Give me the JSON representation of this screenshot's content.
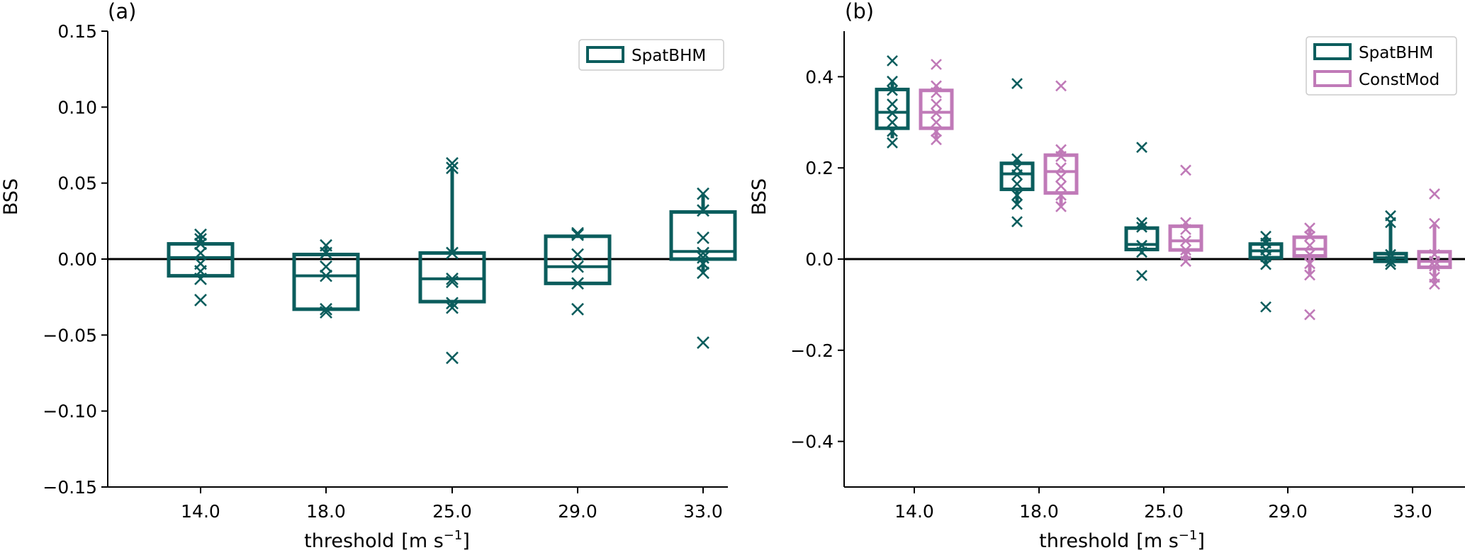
{
  "colors": {
    "spat": "#0b5d5d",
    "const": "#c07ab8",
    "axis": "#000000"
  },
  "chart_data": [
    {
      "type": "box",
      "panel_label": "(a)",
      "ylabel": "BSS",
      "xlabel": "threshold",
      "xlabel_unit": "[m s",
      "xlabel_unit_exp": "−1",
      "xlabel_unit_end": "]",
      "categories": [
        "14.0",
        "18.0",
        "25.0",
        "29.0",
        "33.0"
      ],
      "ylim": [
        -0.15,
        0.15
      ],
      "yticks": [
        -0.15,
        -0.1,
        -0.05,
        0.0,
        0.05,
        0.1,
        0.15
      ],
      "ytick_labels": [
        "−0.15",
        "−0.10",
        "−0.05",
        "0.00",
        "0.05",
        "0.10",
        "0.15"
      ],
      "legend": {
        "position": "top-right",
        "entries": [
          "SpatBHM"
        ]
      },
      "series": [
        {
          "name": "SpatBHM",
          "color_key": "spat",
          "boxes": [
            {
              "q1": -0.011,
              "median": 0.001,
              "q3": 0.01,
              "whisker_low": -0.011,
              "whisker_high": 0.015,
              "points": [
                0.016,
                0.013,
                0.01,
                0.004,
                -0.003,
                -0.008,
                -0.013,
                -0.027
              ]
            },
            {
              "q1": -0.033,
              "median": -0.011,
              "q3": 0.003,
              "whisker_low": -0.034,
              "whisker_high": 0.008,
              "points": [
                0.009,
                0.004,
                -0.005,
                -0.011,
                -0.033,
                -0.035
              ]
            },
            {
              "q1": -0.028,
              "median": -0.013,
              "q3": 0.004,
              "whisker_low": -0.031,
              "whisker_high": 0.061,
              "points": [
                0.063,
                0.06,
                0.004,
                -0.013,
                -0.015,
                -0.029,
                -0.032,
                -0.065
              ]
            },
            {
              "q1": -0.016,
              "median": -0.005,
              "q3": 0.015,
              "whisker_low": -0.016,
              "whisker_high": 0.017,
              "points": [
                0.017,
                0.016,
                0.003,
                -0.005,
                -0.016,
                -0.033
              ]
            },
            {
              "q1": 0.0,
              "median": 0.005,
              "q3": 0.031,
              "whisker_low": -0.009,
              "whisker_high": 0.043,
              "points": [
                0.043,
                0.032,
                0.014,
                0.004,
                0.001,
                -0.003,
                -0.009,
                -0.055
              ]
            }
          ]
        }
      ]
    },
    {
      "type": "box",
      "panel_label": "(b)",
      "ylabel": "BSS",
      "xlabel": "threshold",
      "xlabel_unit": "[m s",
      "xlabel_unit_exp": "−1",
      "xlabel_unit_end": "]",
      "categories": [
        "14.0",
        "18.0",
        "25.0",
        "29.0",
        "33.0"
      ],
      "ylim": [
        -0.5,
        0.5
      ],
      "yticks": [
        -0.4,
        -0.2,
        0.0,
        0.2,
        0.4
      ],
      "ytick_labels": [
        "−0.4",
        "−0.2",
        "0.0",
        "0.2",
        "0.4"
      ],
      "legend": {
        "position": "top-right",
        "entries": [
          "SpatBHM",
          "ConstMod"
        ]
      },
      "series": [
        {
          "name": "SpatBHM",
          "color_key": "spat",
          "boxes": [
            {
              "q1": 0.287,
              "median": 0.322,
              "q3": 0.372,
              "whisker_low": 0.265,
              "whisker_high": 0.39,
              "points": [
                0.435,
                0.39,
                0.37,
                0.34,
                0.32,
                0.3,
                0.28,
                0.255
              ]
            },
            {
              "q1": 0.153,
              "median": 0.187,
              "q3": 0.21,
              "whisker_low": 0.12,
              "whisker_high": 0.22,
              "points": [
                0.385,
                0.22,
                0.2,
                0.185,
                0.165,
                0.14,
                0.12,
                0.082
              ]
            },
            {
              "q1": 0.021,
              "median": 0.032,
              "q3": 0.068,
              "whisker_low": 0.01,
              "whisker_high": 0.08,
              "points": [
                0.245,
                0.08,
                0.07,
                0.03,
                0.015,
                -0.036
              ]
            },
            {
              "q1": 0.003,
              "median": 0.018,
              "q3": 0.033,
              "whisker_low": -0.012,
              "whisker_high": 0.05,
              "points": [
                0.05,
                0.035,
                0.02,
                0.005,
                -0.012,
                -0.105
              ]
            },
            {
              "q1": -0.005,
              "median": 0.003,
              "q3": 0.012,
              "whisker_low": -0.012,
              "whisker_high": 0.085,
              "points": [
                0.095,
                0.08,
                0.01,
                0.003,
                -0.005,
                -0.012
              ]
            }
          ]
        },
        {
          "name": "ConstMod",
          "color_key": "const",
          "boxes": [
            {
              "q1": 0.287,
              "median": 0.322,
              "q3": 0.37,
              "whisker_low": 0.262,
              "whisker_high": 0.38,
              "points": [
                0.427,
                0.38,
                0.365,
                0.34,
                0.32,
                0.3,
                0.28,
                0.262
              ]
            },
            {
              "q1": 0.145,
              "median": 0.192,
              "q3": 0.228,
              "whisker_low": 0.115,
              "whisker_high": 0.24,
              "points": [
                0.38,
                0.24,
                0.225,
                0.2,
                0.18,
                0.16,
                0.14,
                0.115
              ]
            },
            {
              "q1": 0.02,
              "median": 0.04,
              "q3": 0.072,
              "whisker_low": -0.005,
              "whisker_high": 0.08,
              "points": [
                0.195,
                0.08,
                0.065,
                0.04,
                0.02,
                0.01,
                -0.005
              ]
            },
            {
              "q1": 0.007,
              "median": 0.022,
              "q3": 0.048,
              "whisker_low": -0.035,
              "whisker_high": 0.068,
              "points": [
                0.068,
                0.05,
                0.03,
                0.01,
                -0.01,
                -0.035,
                -0.122
              ]
            },
            {
              "q1": -0.018,
              "median": -0.005,
              "q3": 0.016,
              "whisker_low": -0.055,
              "whisker_high": 0.078,
              "points": [
                0.143,
                0.078,
                0.01,
                -0.005,
                -0.015,
                -0.04,
                -0.055
              ]
            }
          ]
        }
      ]
    }
  ]
}
